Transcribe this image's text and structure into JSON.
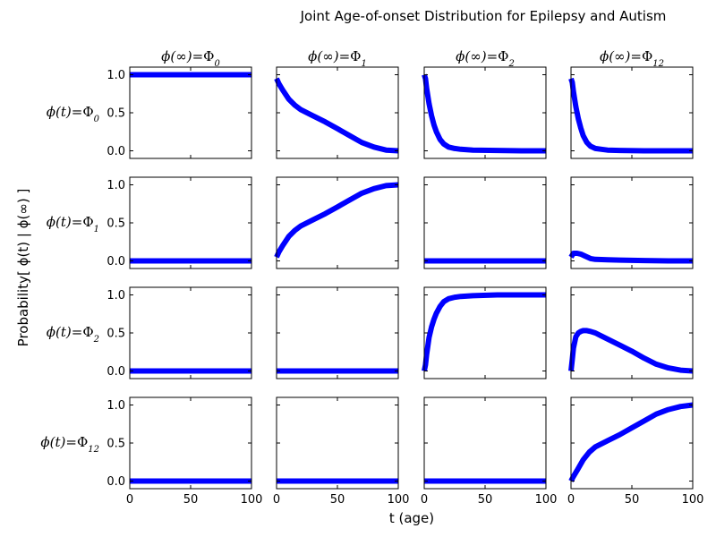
{
  "title": "Joint Age-of-onset Distribution for Epilepsy and Autism",
  "xlabel": "t (age)",
  "ylabel": "Probability[ ϕ(t) | ϕ(∞) ]",
  "colors": {
    "line": "#0000ff",
    "frame": "#000000",
    "background": "#ffffff"
  },
  "chart_data": {
    "type": "line",
    "layout": "4x4 grid of subplots",
    "title": "Joint Age-of-onset Distribution for Epilepsy and Autism",
    "xlabel": "t (age)",
    "ylabel": "Probability[ ϕ(t) | ϕ(∞) ]",
    "xlim": [
      0,
      100
    ],
    "ylim": [
      -0.1,
      1.1
    ],
    "xticks": [
      0,
      50,
      100
    ],
    "yticks": [
      0.0,
      0.5,
      1.0
    ],
    "xtick_labels": [
      "0",
      "50",
      "100"
    ],
    "ytick_labels": [
      "0.0",
      "0.5",
      "1.0"
    ],
    "grid": false,
    "legend": "none",
    "column_titles": [
      {
        "lhs": "ϕ(∞)=",
        "sym": "Φ",
        "sub": "0"
      },
      {
        "lhs": "ϕ(∞)=",
        "sym": "Φ",
        "sub": "1"
      },
      {
        "lhs": "ϕ(∞)=",
        "sym": "Φ",
        "sub": "2"
      },
      {
        "lhs": "ϕ(∞)=",
        "sym": "Φ",
        "sub": "12"
      }
    ],
    "row_labels": [
      {
        "lhs": "ϕ(t)=",
        "sym": "Φ",
        "sub": "0"
      },
      {
        "lhs": "ϕ(t)=",
        "sym": "Φ",
        "sub": "1"
      },
      {
        "lhs": "ϕ(t)=",
        "sym": "Φ",
        "sub": "2"
      },
      {
        "lhs": "ϕ(t)=",
        "sym": "Φ",
        "sub": "12"
      }
    ],
    "panels": [
      [
        {
          "x": [
            0,
            100
          ],
          "y": [
            1.0,
            1.0
          ]
        },
        {
          "x": [
            0,
            2,
            5,
            10,
            15,
            20,
            30,
            40,
            50,
            60,
            70,
            80,
            90,
            100
          ],
          "y": [
            0.95,
            0.88,
            0.8,
            0.68,
            0.6,
            0.54,
            0.46,
            0.38,
            0.29,
            0.2,
            0.11,
            0.05,
            0.01,
            0.0
          ]
        },
        {
          "x": [
            0,
            1,
            2,
            4,
            6,
            8,
            10,
            13,
            16,
            20,
            25,
            30,
            40,
            60,
            80,
            100
          ],
          "y": [
            1.0,
            0.95,
            0.82,
            0.62,
            0.46,
            0.34,
            0.25,
            0.15,
            0.09,
            0.05,
            0.03,
            0.02,
            0.01,
            0.005,
            0.0,
            0.0
          ]
        },
        {
          "x": [
            0,
            1,
            2,
            4,
            6,
            8,
            10,
            13,
            16,
            20,
            25,
            30,
            40,
            60,
            80,
            100
          ],
          "y": [
            0.95,
            0.9,
            0.78,
            0.58,
            0.42,
            0.3,
            0.2,
            0.11,
            0.06,
            0.03,
            0.02,
            0.01,
            0.005,
            0.0,
            0.0,
            0.0
          ]
        }
      ],
      [
        {
          "x": [
            0,
            100
          ],
          "y": [
            0.0,
            0.0
          ]
        },
        {
          "x": [
            0,
            2,
            5,
            10,
            15,
            20,
            30,
            40,
            50,
            60,
            70,
            80,
            90,
            100
          ],
          "y": [
            0.05,
            0.12,
            0.2,
            0.32,
            0.4,
            0.46,
            0.54,
            0.62,
            0.71,
            0.8,
            0.89,
            0.95,
            0.99,
            1.0
          ]
        },
        {
          "x": [
            0,
            100
          ],
          "y": [
            0.0,
            0.0
          ]
        },
        {
          "x": [
            0,
            2,
            5,
            8,
            12,
            16,
            20,
            30,
            40,
            60,
            80,
            100
          ],
          "y": [
            0.05,
            0.1,
            0.1,
            0.09,
            0.06,
            0.03,
            0.02,
            0.015,
            0.01,
            0.005,
            0.0,
            0.0
          ]
        }
      ],
      [
        {
          "x": [
            0,
            100
          ],
          "y": [
            0.0,
            0.0
          ]
        },
        {
          "x": [
            0,
            100
          ],
          "y": [
            0.0,
            0.0
          ]
        },
        {
          "x": [
            0,
            1,
            2,
            4,
            6,
            8,
            10,
            13,
            16,
            20,
            25,
            30,
            40,
            60,
            80,
            100
          ],
          "y": [
            0.0,
            0.08,
            0.22,
            0.44,
            0.58,
            0.68,
            0.76,
            0.85,
            0.91,
            0.95,
            0.97,
            0.98,
            0.99,
            1.0,
            1.0,
            1.0
          ]
        },
        {
          "x": [
            0,
            1,
            2,
            4,
            6,
            8,
            10,
            13,
            16,
            20,
            25,
            30,
            40,
            50,
            60,
            70,
            80,
            90,
            100
          ],
          "y": [
            0.0,
            0.15,
            0.3,
            0.45,
            0.5,
            0.52,
            0.53,
            0.53,
            0.52,
            0.5,
            0.46,
            0.42,
            0.34,
            0.26,
            0.17,
            0.09,
            0.04,
            0.01,
            0.0
          ]
        }
      ],
      [
        {
          "x": [
            0,
            100
          ],
          "y": [
            0.0,
            0.0
          ]
        },
        {
          "x": [
            0,
            100
          ],
          "y": [
            0.0,
            0.0
          ]
        },
        {
          "x": [
            0,
            100
          ],
          "y": [
            0.0,
            0.0
          ]
        },
        {
          "x": [
            0,
            2,
            5,
            10,
            15,
            20,
            30,
            40,
            50,
            60,
            70,
            80,
            90,
            100
          ],
          "y": [
            0.0,
            0.06,
            0.14,
            0.28,
            0.38,
            0.45,
            0.53,
            0.61,
            0.7,
            0.79,
            0.88,
            0.94,
            0.98,
            1.0
          ]
        }
      ]
    ]
  }
}
